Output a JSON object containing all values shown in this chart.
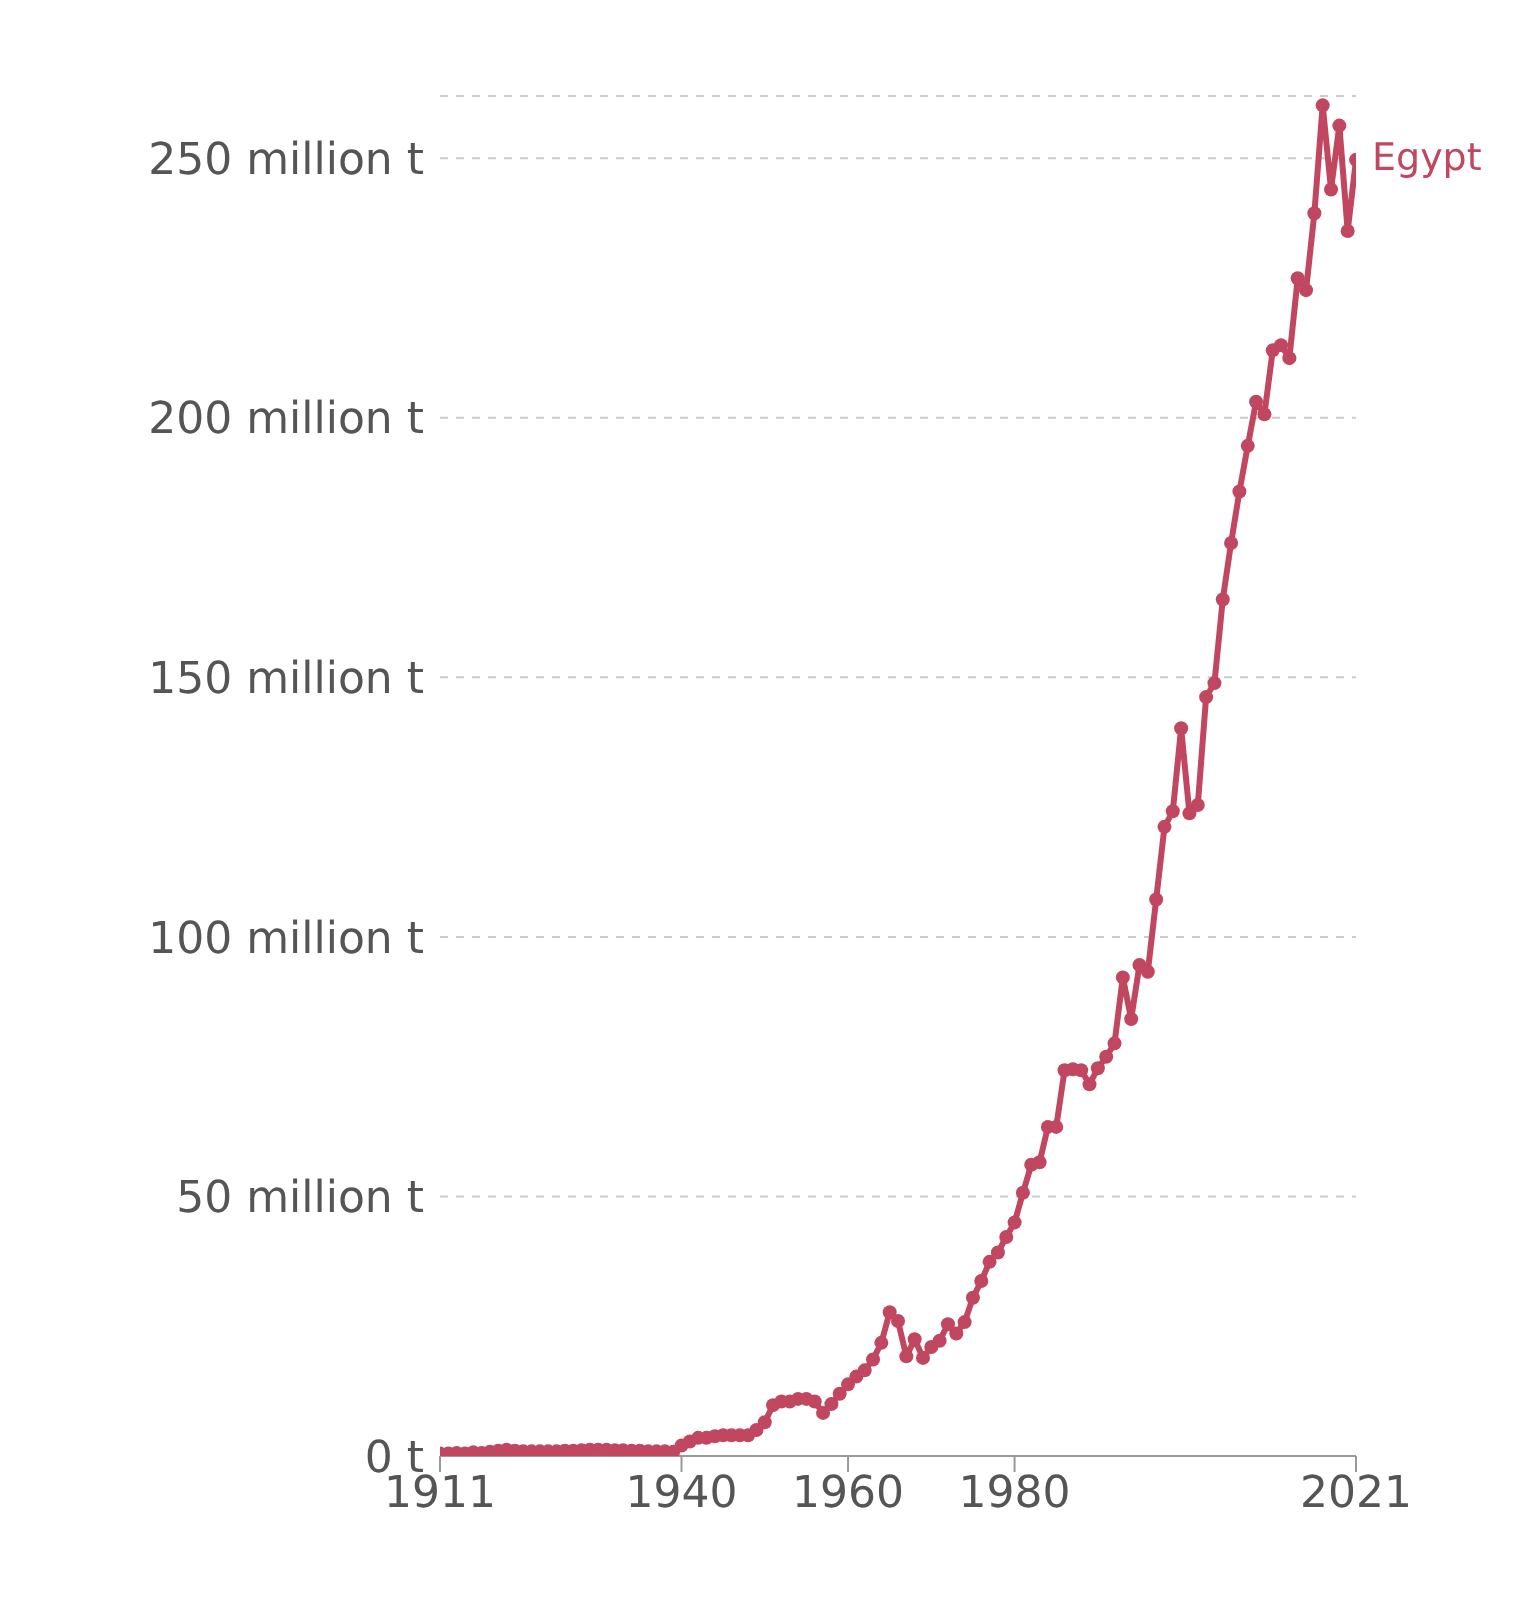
{
  "chart_data": {
    "type": "line",
    "x": [
      1911,
      1912,
      1913,
      1914,
      1915,
      1916,
      1917,
      1918,
      1919,
      1920,
      1921,
      1922,
      1923,
      1924,
      1925,
      1926,
      1927,
      1928,
      1929,
      1930,
      1931,
      1932,
      1933,
      1934,
      1935,
      1936,
      1937,
      1938,
      1939,
      1940,
      1941,
      1942,
      1943,
      1944,
      1945,
      1946,
      1947,
      1948,
      1949,
      1950,
      1951,
      1952,
      1953,
      1954,
      1955,
      1956,
      1957,
      1958,
      1959,
      1960,
      1961,
      1962,
      1963,
      1964,
      1965,
      1966,
      1967,
      1968,
      1969,
      1970,
      1971,
      1972,
      1973,
      1974,
      1975,
      1976,
      1977,
      1978,
      1979,
      1980,
      1981,
      1982,
      1983,
      1984,
      1985,
      1986,
      1987,
      1988,
      1989,
      1990,
      1991,
      1992,
      1993,
      1994,
      1995,
      1996,
      1997,
      1998,
      1999,
      2000,
      2001,
      2002,
      2003,
      2004,
      2005,
      2006,
      2007,
      2008,
      2009,
      2010,
      2011,
      2012,
      2013,
      2014,
      2015,
      2016,
      2017,
      2018,
      2019,
      2020,
      2021
    ],
    "series": [
      {
        "name": "Egypt",
        "color": "#c0475f",
        "values": [
          0.5,
          0.5,
          0.6,
          0.5,
          0.7,
          0.6,
          0.8,
          1,
          1.2,
          1,
          0.9,
          0.9,
          0.9,
          0.9,
          0.9,
          1,
          1,
          1.1,
          1.2,
          1.2,
          1.2,
          1.1,
          1.1,
          1,
          1,
          0.9,
          0.9,
          0.9,
          0.8,
          2,
          2.8,
          3.5,
          3.5,
          3.8,
          4,
          4,
          4,
          4,
          5,
          6.5,
          9.8,
          10.5,
          10.5,
          11,
          11,
          10.5,
          8.3,
          10,
          12,
          13.8,
          15.3,
          16.5,
          18.6,
          21.8,
          27.7,
          26,
          19.2,
          22.5,
          18.9,
          21,
          22.2,
          25.4,
          23.6,
          25.8,
          30.5,
          33.7,
          37.4,
          39.2,
          42.2,
          45,
          50.7,
          56.1,
          56.6,
          63.4,
          63.4,
          74.3,
          74.5,
          74.3,
          71.6,
          74.7,
          76.9,
          79.5,
          92.2,
          84.2,
          94.6,
          93.3,
          107.2,
          121.2,
          124.2,
          140.2,
          123.8,
          125.4,
          146.2,
          148.9,
          165,
          175.9,
          185.8,
          194.6,
          203.1,
          200.7,
          213,
          214,
          211.5,
          226.9,
          224.6,
          239.4,
          260.2,
          244,
          256.3,
          236,
          249.7
        ]
      }
    ],
    "xlim": [
      1911,
      2021
    ],
    "xticks": [
      1911,
      1940,
      1960,
      1980,
      2021
    ],
    "ylim": [
      0,
      262
    ],
    "yticks": [
      {
        "value": 0,
        "label": "0 t"
      },
      {
        "value": 50,
        "label": "50 million t"
      },
      {
        "value": 100,
        "label": "100 million t"
      },
      {
        "value": 150,
        "label": "150 million t"
      },
      {
        "value": 200,
        "label": "200 million t"
      },
      {
        "value": 250,
        "label": "250 million t"
      }
    ],
    "grid": "y",
    "marker": "circle",
    "line_style": "solid",
    "legend": false
  }
}
